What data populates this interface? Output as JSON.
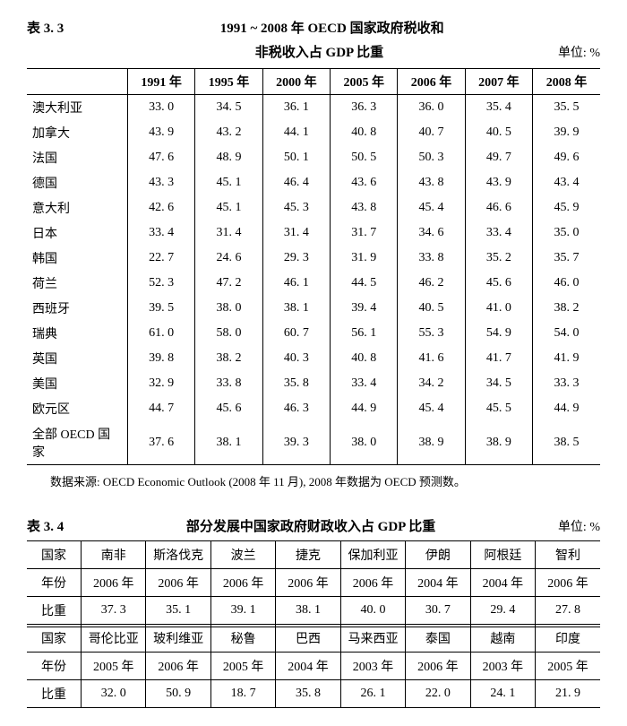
{
  "table33": {
    "label": "表 3. 3",
    "title": "1991 ~ 2008 年 OECD 国家政府税收和",
    "subtitle": "非税收入占 GDP 比重",
    "unit": "单位: %",
    "columns": [
      "",
      "1991 年",
      "1995 年",
      "2000 年",
      "2005 年",
      "2006 年",
      "2007 年",
      "2008 年"
    ],
    "rows": [
      [
        "澳大利亚",
        "33. 0",
        "34. 5",
        "36. 1",
        "36. 3",
        "36. 0",
        "35. 4",
        "35. 5"
      ],
      [
        "加拿大",
        "43. 9",
        "43. 2",
        "44. 1",
        "40. 8",
        "40. 7",
        "40. 5",
        "39. 9"
      ],
      [
        "法国",
        "47. 6",
        "48. 9",
        "50. 1",
        "50. 5",
        "50. 3",
        "49. 7",
        "49. 6"
      ],
      [
        "德国",
        "43. 3",
        "45. 1",
        "46. 4",
        "43. 6",
        "43. 8",
        "43. 9",
        "43. 4"
      ],
      [
        "意大利",
        "42. 6",
        "45. 1",
        "45. 3",
        "43. 8",
        "45. 4",
        "46. 6",
        "45. 9"
      ],
      [
        "日本",
        "33. 4",
        "31. 4",
        "31. 4",
        "31. 7",
        "34. 6",
        "33. 4",
        "35. 0"
      ],
      [
        "韩国",
        "22. 7",
        "24. 6",
        "29. 3",
        "31. 9",
        "33. 8",
        "35. 2",
        "35. 7"
      ],
      [
        "荷兰",
        "52. 3",
        "47. 2",
        "46. 1",
        "44. 5",
        "46. 2",
        "45. 6",
        "46. 0"
      ],
      [
        "西班牙",
        "39. 5",
        "38. 0",
        "38. 1",
        "39. 4",
        "40. 5",
        "41. 0",
        "38. 2"
      ],
      [
        "瑞典",
        "61. 0",
        "58. 0",
        "60. 7",
        "56. 1",
        "55. 3",
        "54. 9",
        "54. 0"
      ],
      [
        "英国",
        "39. 8",
        "38. 2",
        "40. 3",
        "40. 8",
        "41. 6",
        "41. 7",
        "41. 9"
      ],
      [
        "美国",
        "32. 9",
        "33. 8",
        "35. 8",
        "33. 4",
        "34. 2",
        "34. 5",
        "33. 3"
      ],
      [
        "欧元区",
        "44. 7",
        "45. 6",
        "46. 3",
        "44. 9",
        "45. 4",
        "45. 5",
        "44. 9"
      ],
      [
        "全部 OECD 国家",
        "37. 6",
        "38. 1",
        "39. 3",
        "38. 0",
        "38. 9",
        "38. 9",
        "38. 5"
      ]
    ],
    "source": "数据来源: OECD Economic Outlook (2008 年 11 月), 2008 年数据为 OECD 预测数。"
  },
  "table34": {
    "label": "表 3. 4",
    "title": "部分发展中国家政府财政收入占 GDP 比重",
    "unit": "单位: %",
    "rowLabels": [
      "国家",
      "年份",
      "比重",
      "国家",
      "年份",
      "比重"
    ],
    "block1": {
      "countries": [
        "南非",
        "斯洛伐克",
        "波兰",
        "捷克",
        "保加利亚",
        "伊朗",
        "阿根廷",
        "智利"
      ],
      "years": [
        "2006 年",
        "2006 年",
        "2006 年",
        "2006 年",
        "2006 年",
        "2004 年",
        "2004 年",
        "2006 年"
      ],
      "values": [
        "37. 3",
        "35. 1",
        "39. 1",
        "38. 1",
        "40. 0",
        "30. 7",
        "29. 4",
        "27. 8"
      ]
    },
    "block2": {
      "countries": [
        "哥伦比亚",
        "玻利维亚",
        "秘鲁",
        "巴西",
        "马来西亚",
        "泰国",
        "越南",
        "印度"
      ],
      "years": [
        "2005 年",
        "2006 年",
        "2005 年",
        "2004 年",
        "2003 年",
        "2006 年",
        "2003 年",
        "2005 年"
      ],
      "values": [
        "32. 0",
        "50. 9",
        "18. 7",
        "35. 8",
        "26. 1",
        "22. 0",
        "24. 1",
        "21. 9"
      ]
    }
  }
}
